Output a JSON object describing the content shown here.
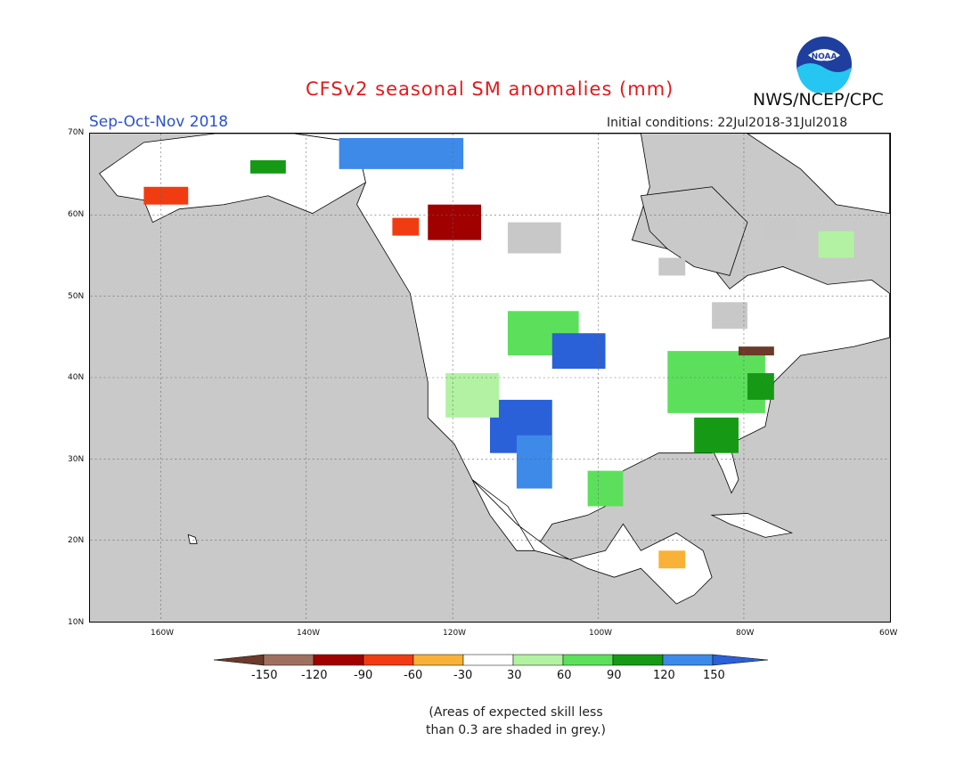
{
  "title": "CFSv2 seasonal SM anomalies (mm)",
  "season": "Sep-Oct-Nov 2018",
  "initial_conditions": "Initial conditions: 22Jul2018-31Jul2018",
  "agency": "NWS/NCEP/CPC",
  "logo_text": "NOAA",
  "lat_labels": [
    "70N",
    "60N",
    "50N",
    "40N",
    "30N",
    "20N",
    "10N"
  ],
  "lon_labels": [
    "160W",
    "140W",
    "120W",
    "100W",
    "80W",
    "60W"
  ],
  "colorbar": {
    "labels": [
      "-150",
      "-120",
      "-90",
      "-60",
      "-30",
      "30",
      "60",
      "90",
      "120",
      "150"
    ],
    "colors": [
      "#6b3a2a",
      "#a0705f",
      "#a00000",
      "#f03c10",
      "#f8b238",
      "#ffffff",
      "#b2f2a2",
      "#5ce05c",
      "#169a16",
      "#3d8ae8",
      "#2a60d8"
    ]
  },
  "note_line1": "(Areas of expected skill less",
  "note_line2": "than 0.3 are shaded in grey.)",
  "colors": {
    "ocean": "#c9c9c9",
    "land": "#ffffff",
    "grey_skill": "#c8c8c8"
  }
}
